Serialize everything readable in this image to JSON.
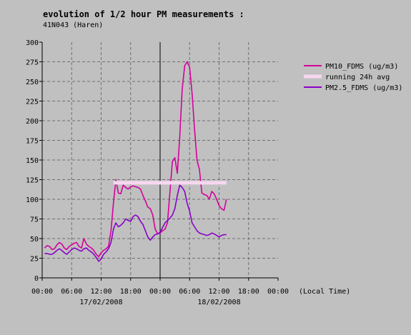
{
  "header": {
    "title": "evolution of 1/2 hour PM measurements :",
    "subtitle": "41N043 (Haren)"
  },
  "chart_data": {
    "type": "line",
    "title": "evolution of 1/2 hour PM measurements :",
    "subtitle": "41N043 (Haren)",
    "xlabel": "(Local Time)",
    "ylim": [
      0,
      300
    ],
    "yticks": [
      0,
      25,
      50,
      75,
      100,
      125,
      150,
      175,
      200,
      225,
      250,
      275,
      300
    ],
    "xlim_hours": [
      0,
      48
    ],
    "xtick_hours": [
      0,
      6,
      12,
      18,
      24,
      30,
      36,
      42,
      48
    ],
    "xtick_labels": [
      "00:00",
      "06:00",
      "12:00",
      "18:00",
      "00:00",
      "06:00",
      "12:00",
      "18:00",
      "00:00"
    ],
    "date_labels": [
      {
        "text": "17/02/2008",
        "hour": 12
      },
      {
        "text": "18/02/2008",
        "hour": 36
      }
    ],
    "x_unit_note": "hours since 17/02/2008 00:00",
    "grid": true,
    "legend_position": "right",
    "series": [
      {
        "name": "PM10_FDMS (ug/m3)",
        "color": "#d4009a",
        "points": [
          [
            0.5,
            38
          ],
          [
            1,
            41
          ],
          [
            1.5,
            40
          ],
          [
            2,
            36
          ],
          [
            2.5,
            37
          ],
          [
            3,
            42
          ],
          [
            3.5,
            45
          ],
          [
            4,
            43
          ],
          [
            4.5,
            38
          ],
          [
            5,
            36
          ],
          [
            5.5,
            40
          ],
          [
            6,
            42
          ],
          [
            6.5,
            44
          ],
          [
            7,
            45
          ],
          [
            7.5,
            40
          ],
          [
            8,
            38
          ],
          [
            8.5,
            50
          ],
          [
            9,
            43
          ],
          [
            9.5,
            40
          ],
          [
            10,
            38
          ],
          [
            10.5,
            35
          ],
          [
            11,
            30
          ],
          [
            11.5,
            27
          ],
          [
            12,
            32
          ],
          [
            12.5,
            35
          ],
          [
            13,
            37
          ],
          [
            13.5,
            40
          ],
          [
            14,
            60
          ],
          [
            14.5,
            95
          ],
          [
            15,
            125
          ],
          [
            15.5,
            108
          ],
          [
            16,
            107
          ],
          [
            16.5,
            118
          ],
          [
            17,
            115
          ],
          [
            17.5,
            113
          ],
          [
            18,
            116
          ],
          [
            18.5,
            117
          ],
          [
            19,
            116
          ],
          [
            19.5,
            115
          ],
          [
            20,
            113
          ],
          [
            20.5,
            105
          ],
          [
            21,
            98
          ],
          [
            21.5,
            90
          ],
          [
            22,
            88
          ],
          [
            22.5,
            80
          ],
          [
            23,
            62
          ],
          [
            23.5,
            56
          ],
          [
            24,
            57
          ],
          [
            24.5,
            60
          ],
          [
            25,
            62
          ],
          [
            25.5,
            70
          ],
          [
            26,
            110
          ],
          [
            26.5,
            148
          ],
          [
            27,
            153
          ],
          [
            27.5,
            133
          ],
          [
            28,
            180
          ],
          [
            28.5,
            240
          ],
          [
            29,
            270
          ],
          [
            29.5,
            275
          ],
          [
            30,
            268
          ],
          [
            30.5,
            235
          ],
          [
            31,
            190
          ],
          [
            31.5,
            150
          ],
          [
            32,
            138
          ],
          [
            32.5,
            108
          ],
          [
            33,
            106
          ],
          [
            33.5,
            105
          ],
          [
            34,
            100
          ],
          [
            34.5,
            110
          ],
          [
            35,
            107
          ],
          [
            35.5,
            100
          ],
          [
            36,
            92
          ],
          [
            36.5,
            88
          ],
          [
            37,
            86
          ],
          [
            37.5,
            100
          ]
        ]
      },
      {
        "name": "running 24h avg",
        "color": "#f7d7f0",
        "points": [
          [
            14.5,
            121
          ],
          [
            37.5,
            121
          ]
        ]
      },
      {
        "name": "PM2.5_FDMS (ug/m3)",
        "color": "#8a00c8",
        "points": [
          [
            0.5,
            31
          ],
          [
            1,
            31
          ],
          [
            1.5,
            30
          ],
          [
            2,
            30
          ],
          [
            2.5,
            32
          ],
          [
            3,
            35
          ],
          [
            3.5,
            37
          ],
          [
            4,
            35
          ],
          [
            4.5,
            32
          ],
          [
            5,
            30
          ],
          [
            5.5,
            33
          ],
          [
            6,
            36
          ],
          [
            6.5,
            38
          ],
          [
            7,
            37
          ],
          [
            7.5,
            35
          ],
          [
            8,
            34
          ],
          [
            8.5,
            37
          ],
          [
            9,
            38
          ],
          [
            9.5,
            35
          ],
          [
            10,
            33
          ],
          [
            10.5,
            30
          ],
          [
            11,
            26
          ],
          [
            11.5,
            21
          ],
          [
            12,
            24
          ],
          [
            12.5,
            30
          ],
          [
            13,
            33
          ],
          [
            13.5,
            37
          ],
          [
            14,
            45
          ],
          [
            14.5,
            62
          ],
          [
            15,
            70
          ],
          [
            15.5,
            65
          ],
          [
            16,
            67
          ],
          [
            16.5,
            70
          ],
          [
            17,
            75
          ],
          [
            17.5,
            73
          ],
          [
            18,
            72
          ],
          [
            18.5,
            78
          ],
          [
            19,
            80
          ],
          [
            19.5,
            78
          ],
          [
            20,
            72
          ],
          [
            20.5,
            68
          ],
          [
            21,
            60
          ],
          [
            21.5,
            52
          ],
          [
            22,
            48
          ],
          [
            22.5,
            52
          ],
          [
            23,
            55
          ],
          [
            23.5,
            56
          ],
          [
            24,
            58
          ],
          [
            24.5,
            64
          ],
          [
            25,
            70
          ],
          [
            25.5,
            73
          ],
          [
            26,
            76
          ],
          [
            26.5,
            80
          ],
          [
            27,
            88
          ],
          [
            27.5,
            105
          ],
          [
            28,
            118
          ],
          [
            28.5,
            115
          ],
          [
            29,
            110
          ],
          [
            29.5,
            95
          ],
          [
            30,
            85
          ],
          [
            30.5,
            70
          ],
          [
            31,
            65
          ],
          [
            31.5,
            60
          ],
          [
            32,
            57
          ],
          [
            32.5,
            56
          ],
          [
            33,
            55
          ],
          [
            33.5,
            54
          ],
          [
            34,
            55
          ],
          [
            34.5,
            57
          ],
          [
            35,
            56
          ],
          [
            35.5,
            54
          ],
          [
            36,
            52
          ],
          [
            36.5,
            54
          ],
          [
            37,
            55
          ],
          [
            37.5,
            55
          ]
        ]
      }
    ]
  }
}
